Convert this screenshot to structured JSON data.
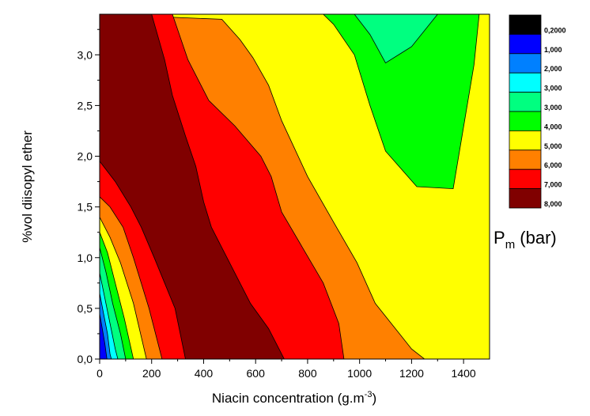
{
  "chart_data": {
    "type": "contour",
    "xlabel": "Niacin concentration (g.m",
    "xlabel_sup": "-3",
    "xlabel_close": ")",
    "ylabel": "%vol diisopyl ether",
    "xlim": [
      0,
      1500
    ],
    "ylim": [
      0.0,
      3.4
    ],
    "x_ticks": [
      {
        "v": 0,
        "label": "0"
      },
      {
        "v": 200,
        "label": "200"
      },
      {
        "v": 400,
        "label": "400"
      },
      {
        "v": 600,
        "label": "600"
      },
      {
        "v": 800,
        "label": "800"
      },
      {
        "v": 1000,
        "label": "1000"
      },
      {
        "v": 1200,
        "label": "1200"
      },
      {
        "v": 1400,
        "label": "1400"
      }
    ],
    "y_ticks": [
      {
        "v": 0.0,
        "label": "0,0"
      },
      {
        "v": 0.5,
        "label": "0,5"
      },
      {
        "v": 1.0,
        "label": "1,0"
      },
      {
        "v": 1.5,
        "label": "1,5"
      },
      {
        "v": 2.0,
        "label": "2,0"
      },
      {
        "v": 2.5,
        "label": "2,5"
      },
      {
        "v": 3.0,
        "label": "3,0"
      }
    ],
    "legend": {
      "title": "P",
      "title_sub": "m",
      "title_unit": " (bar)",
      "levels": [
        {
          "label": "0,2000",
          "color": "#000000"
        },
        {
          "label": "1,000",
          "color": "#0000ff"
        },
        {
          "label": "2,000",
          "color": "#0080ff"
        },
        {
          "label": "3,000",
          "color": "#00ffff"
        },
        {
          "label": "3,000",
          "color": "#00ff80"
        },
        {
          "label": "4,000",
          "color": "#00ff00"
        },
        {
          "label": "5,000",
          "color": "#ffff00"
        },
        {
          "label": "6,000",
          "color": "#ff8000"
        },
        {
          "label": "7,000",
          "color": "#ff0000"
        },
        {
          "label": "8,000",
          "color": "#800000"
        }
      ]
    },
    "regions": [
      {
        "name": "level-5000",
        "color": "#ffff00",
        "polygon": [
          [
            0,
            0
          ],
          [
            1500,
            0
          ],
          [
            1500,
            3.4
          ],
          [
            0,
            3.4
          ]
        ]
      },
      {
        "name": "level-4000",
        "color": "#00ff00",
        "polygon": [
          [
            860,
            3.4
          ],
          [
            1460,
            3.4
          ],
          [
            1440,
            2.9
          ],
          [
            1360,
            1.68
          ],
          [
            1220,
            1.7
          ],
          [
            1100,
            2.05
          ],
          [
            1040,
            2.5
          ],
          [
            980,
            3.0
          ],
          [
            900,
            3.3
          ]
        ]
      },
      {
        "name": "level-3000",
        "color": "#00ff80",
        "polygon": [
          [
            980,
            3.4
          ],
          [
            1300,
            3.4
          ],
          [
            1200,
            3.08
          ],
          [
            1100,
            2.92
          ],
          [
            1040,
            3.2
          ]
        ]
      },
      {
        "name": "level-6000",
        "color": "#ff8000",
        "polygon": [
          [
            0,
            0
          ],
          [
            1250,
            0
          ],
          [
            1200,
            0.1
          ],
          [
            1060,
            0.55
          ],
          [
            990,
            0.95
          ],
          [
            900,
            1.35
          ],
          [
            800,
            1.8
          ],
          [
            700,
            2.35
          ],
          [
            650,
            2.7
          ],
          [
            590,
            2.97
          ],
          [
            540,
            3.15
          ],
          [
            470,
            3.35
          ],
          [
            0,
            3.4
          ]
        ]
      },
      {
        "name": "level-7000",
        "color": "#ff0000",
        "polygon": [
          [
            0,
            0
          ],
          [
            940,
            0
          ],
          [
            920,
            0.35
          ],
          [
            860,
            0.75
          ],
          [
            780,
            1.1
          ],
          [
            700,
            1.45
          ],
          [
            660,
            1.8
          ],
          [
            620,
            2.0
          ],
          [
            520,
            2.3
          ],
          [
            420,
            2.55
          ],
          [
            340,
            2.95
          ],
          [
            280,
            3.4
          ],
          [
            0,
            3.4
          ]
        ]
      },
      {
        "name": "level-8000",
        "color": "#800000",
        "polygon": [
          [
            0,
            1.95
          ],
          [
            60,
            1.75
          ],
          [
            120,
            1.5
          ],
          [
            160,
            1.3
          ],
          [
            210,
            1.0
          ],
          [
            290,
            0.5
          ],
          [
            330,
            0.0
          ],
          [
            710,
            0.0
          ],
          [
            650,
            0.3
          ],
          [
            580,
            0.55
          ],
          [
            500,
            0.95
          ],
          [
            430,
            1.3
          ],
          [
            400,
            1.55
          ],
          [
            370,
            1.9
          ],
          [
            330,
            2.2
          ],
          [
            280,
            2.6
          ],
          [
            250,
            2.95
          ],
          [
            200,
            3.4
          ],
          [
            40,
            3.4
          ],
          [
            0,
            3.4
          ]
        ]
      },
      {
        "name": "level-6000-low",
        "color": "#ff8000",
        "polygon": [
          [
            0,
            1.6
          ],
          [
            40,
            1.5
          ],
          [
            90,
            1.3
          ],
          [
            130,
            1.0
          ],
          [
            190,
            0.5
          ],
          [
            240,
            0.0
          ],
          [
            0,
            0
          ]
        ]
      },
      {
        "name": "level-5000-low",
        "color": "#ffff00",
        "polygon": [
          [
            0,
            1.4
          ],
          [
            40,
            1.2
          ],
          [
            80,
            0.95
          ],
          [
            130,
            0.55
          ],
          [
            180,
            0.0
          ],
          [
            0,
            0
          ]
        ]
      },
      {
        "name": "level-4000-low",
        "color": "#00ff00",
        "polygon": [
          [
            0,
            1.25
          ],
          [
            30,
            1.05
          ],
          [
            60,
            0.75
          ],
          [
            95,
            0.4
          ],
          [
            130,
            0.0
          ],
          [
            0,
            0
          ]
        ]
      },
      {
        "name": "level-3000-low",
        "color": "#00ff80",
        "polygon": [
          [
            0,
            1.1
          ],
          [
            25,
            0.85
          ],
          [
            50,
            0.55
          ],
          [
            80,
            0.25
          ],
          [
            100,
            0.0
          ],
          [
            0,
            0
          ]
        ]
      },
      {
        "name": "level-2000-low",
        "color": "#00ffff",
        "polygon": [
          [
            0,
            0.85
          ],
          [
            20,
            0.6
          ],
          [
            40,
            0.35
          ],
          [
            60,
            0.1
          ],
          [
            70,
            0.0
          ],
          [
            0,
            0
          ]
        ]
      },
      {
        "name": "level-1000-low",
        "color": "#0080ff",
        "polygon": [
          [
            0,
            0.65
          ],
          [
            15,
            0.45
          ],
          [
            30,
            0.25
          ],
          [
            40,
            0.05
          ],
          [
            45,
            0.0
          ],
          [
            0,
            0
          ]
        ]
      },
      {
        "name": "level-0200-low",
        "color": "#0000ff",
        "polygon": [
          [
            0,
            0.45
          ],
          [
            10,
            0.3
          ],
          [
            20,
            0.15
          ],
          [
            28,
            0.0
          ],
          [
            0,
            0
          ]
        ]
      }
    ]
  }
}
